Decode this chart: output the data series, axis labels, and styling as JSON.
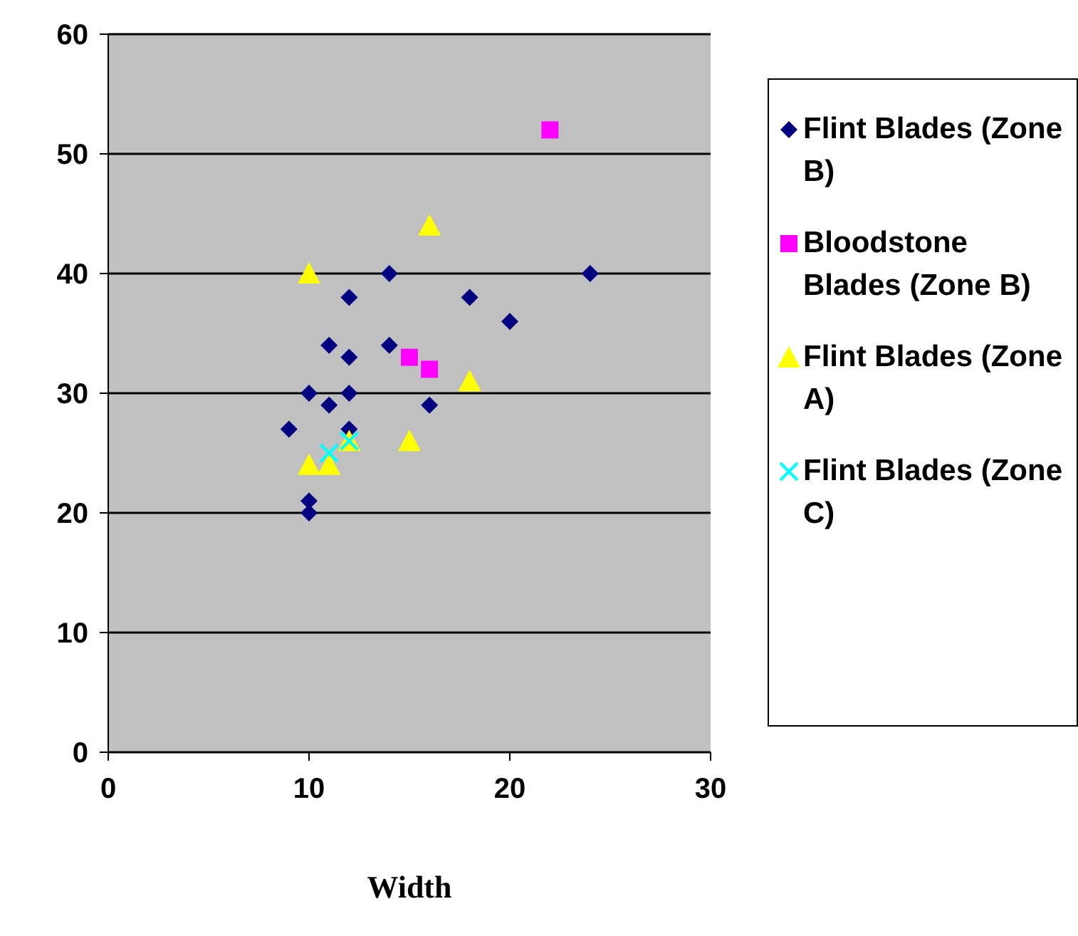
{
  "chart_data": {
    "type": "scatter",
    "xlabel": "Width",
    "xlim": [
      0,
      30
    ],
    "xticks": [
      0,
      10,
      20,
      30
    ],
    "ylim": [
      0,
      60
    ],
    "yticks": [
      0,
      10,
      20,
      30,
      40,
      50,
      60
    ],
    "grid": "y",
    "legend": "right",
    "series": [
      {
        "name": "Flint Blades (Zone B)",
        "color": "#000080",
        "marker": "diamond",
        "x": [
          9,
          10,
          10,
          10,
          11,
          11,
          12,
          12,
          12,
          12,
          14,
          14,
          16,
          18,
          20,
          24
        ],
        "values": [
          27,
          30,
          21,
          20,
          34,
          29,
          38,
          33,
          30,
          27,
          40,
          34,
          29,
          38,
          36,
          40
        ]
      },
      {
        "name": "Bloodstone Blades (Zone B)",
        "color": "#ff00ff",
        "marker": "square",
        "x": [
          15,
          16,
          22
        ],
        "values": [
          33,
          32,
          52
        ]
      },
      {
        "name": "Flint Blades (Zone A)",
        "color": "#ffff00",
        "marker": "triangle",
        "x": [
          10,
          16,
          10,
          11,
          12,
          15,
          18
        ],
        "values": [
          40,
          44,
          24,
          24,
          26,
          26,
          31
        ]
      },
      {
        "name": "Flint Blades (Zone C)",
        "color": "#00ffff",
        "marker": "cross",
        "x": [
          11,
          12
        ],
        "values": [
          25,
          26
        ]
      }
    ]
  }
}
